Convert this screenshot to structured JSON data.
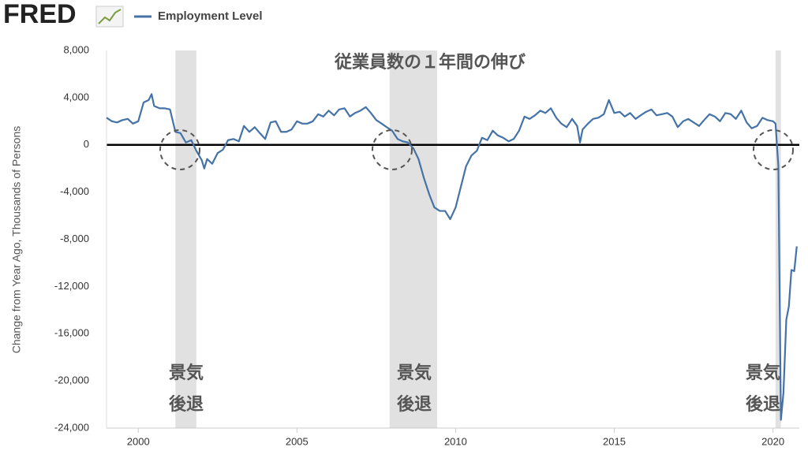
{
  "chart_data": {
    "type": "line",
    "logo": "FRED",
    "title": "従業員数の１年間の伸び",
    "y_label": "Change from Year Ago, Thousands of Persons",
    "annotations": [
      [
        "景気",
        "後退"
      ],
      [
        "景気",
        "後退"
      ],
      [
        "景気",
        "後退"
      ]
    ],
    "recessions": [
      [
        2001.17,
        2001.83
      ],
      [
        2007.92,
        2009.42
      ],
      [
        2020.08,
        2020.25
      ]
    ],
    "recession_color": "#e1e1e1",
    "xlim": [
      1999,
      2020.83
    ],
    "xticks": [
      2000,
      2005,
      2010,
      2015,
      2020
    ],
    "ylim": [
      -24000,
      8000
    ],
    "yticks": [
      {
        "value": 8000,
        "label": "8,000"
      },
      {
        "value": 4000,
        "label": "4,000"
      },
      0,
      {
        "value": -4000,
        "label": "-4,000"
      },
      {
        "value": -8000,
        "label": "-8,000"
      },
      {
        "value": -12000,
        "label": "-12,000"
      },
      {
        "value": -16000,
        "label": "-16,000"
      },
      {
        "value": -20000,
        "label": "-20,000"
      },
      {
        "value": -24000,
        "label": "-24,000"
      }
    ],
    "grid": false,
    "x": [
      1999.0,
      1999.17,
      1999.33,
      1999.5,
      1999.67,
      1999.83,
      2000.0,
      2000.17,
      2000.33,
      2000.42,
      2000.5,
      2000.67,
      2000.83,
      2001.0,
      2001.17,
      2001.33,
      2001.5,
      2001.67,
      2001.83,
      2002.0,
      2002.08,
      2002.17,
      2002.33,
      2002.5,
      2002.67,
      2002.83,
      2003.0,
      2003.17,
      2003.33,
      2003.5,
      2003.67,
      2003.83,
      2004.0,
      2004.17,
      2004.33,
      2004.5,
      2004.67,
      2004.83,
      2005.0,
      2005.17,
      2005.33,
      2005.5,
      2005.67,
      2005.83,
      2006.0,
      2006.17,
      2006.33,
      2006.5,
      2006.67,
      2006.83,
      2007.0,
      2007.17,
      2007.33,
      2007.5,
      2007.67,
      2007.83,
      2008.0,
      2008.17,
      2008.33,
      2008.5,
      2008.67,
      2008.83,
      2009.0,
      2009.17,
      2009.33,
      2009.5,
      2009.67,
      2009.83,
      2010.0,
      2010.17,
      2010.33,
      2010.5,
      2010.67,
      2010.83,
      2011.0,
      2011.17,
      2011.33,
      2011.5,
      2011.67,
      2011.83,
      2012.0,
      2012.17,
      2012.33,
      2012.5,
      2012.67,
      2012.83,
      2013.0,
      2013.17,
      2013.33,
      2013.5,
      2013.67,
      2013.83,
      2013.92,
      2014.0,
      2014.17,
      2014.33,
      2014.5,
      2014.67,
      2014.83,
      2015.0,
      2015.17,
      2015.33,
      2015.5,
      2015.67,
      2015.83,
      2016.0,
      2016.17,
      2016.33,
      2016.5,
      2016.67,
      2016.83,
      2017.0,
      2017.17,
      2017.33,
      2017.5,
      2017.67,
      2017.83,
      2018.0,
      2018.17,
      2018.33,
      2018.5,
      2018.67,
      2018.83,
      2019.0,
      2019.17,
      2019.33,
      2019.5,
      2019.67,
      2019.83,
      2020.0,
      2020.08,
      2020.17,
      2020.25,
      2020.33,
      2020.42,
      2020.5,
      2020.58,
      2020.67,
      2020.75
    ],
    "series": [
      {
        "name": "Employment Level",
        "color": "#4572a7",
        "values": [
          2300,
          2000,
          1900,
          2100,
          2200,
          1800,
          2000,
          3600,
          3800,
          4300,
          3300,
          3100,
          3100,
          3000,
          1100,
          1000,
          200,
          400,
          -500,
          -1300,
          -2000,
          -1200,
          -1600,
          -700,
          -400,
          400,
          500,
          300,
          1600,
          1100,
          1500,
          1000,
          500,
          1900,
          2000,
          1100,
          1100,
          1300,
          2000,
          1800,
          1800,
          2000,
          2600,
          2400,
          2900,
          2500,
          3000,
          3100,
          2400,
          2700,
          2900,
          3200,
          2700,
          2100,
          1800,
          1500,
          1200,
          500,
          300,
          200,
          -300,
          -1200,
          -2800,
          -4200,
          -5300,
          -5600,
          -5600,
          -6300,
          -5300,
          -3500,
          -1800,
          -900,
          -500,
          600,
          400,
          1200,
          800,
          600,
          300,
          500,
          1200,
          2400,
          2200,
          2500,
          2900,
          2700,
          3100,
          2300,
          1800,
          1500,
          2200,
          1600,
          200,
          1300,
          1800,
          2200,
          2300,
          2600,
          3800,
          2700,
          2800,
          2400,
          2700,
          2200,
          2500,
          2800,
          3000,
          2500,
          2600,
          2700,
          2400,
          1500,
          2000,
          2200,
          1900,
          1600,
          2100,
          2600,
          2400,
          2000,
          2700,
          2600,
          2200,
          2900,
          1900,
          1400,
          1600,
          2300,
          2100,
          2000,
          1800,
          -1800,
          -23300,
          -21000,
          -14800,
          -13700,
          -10600,
          -10700,
          -8600
        ]
      }
    ]
  }
}
